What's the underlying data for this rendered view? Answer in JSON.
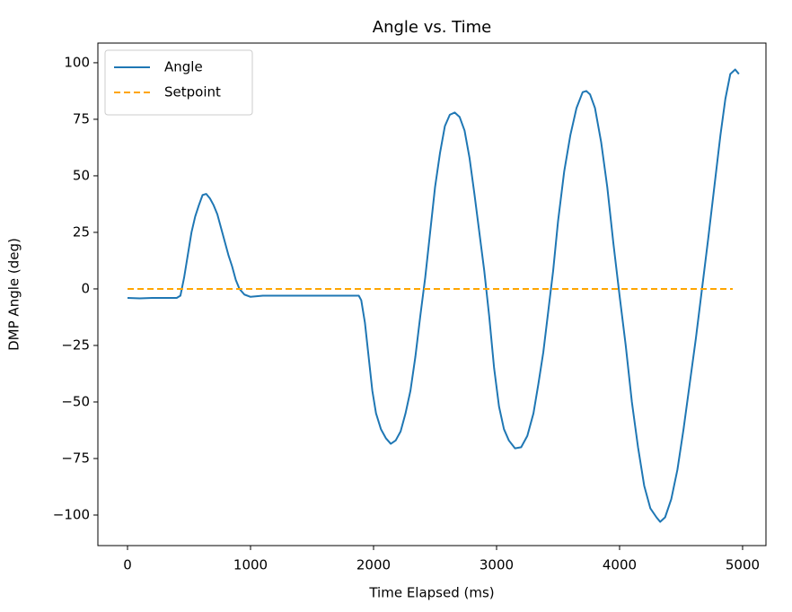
{
  "chart_data": {
    "type": "line",
    "title": "Angle vs. Time",
    "x_label": "Time Elapsed (ms)",
    "y_label": "DMP Angle (deg)",
    "xlim": [
      -241,
      5190
    ],
    "ylim": [
      -113.5,
      108.7
    ],
    "xticks": [
      0,
      1000,
      2000,
      3000,
      4000,
      5000
    ],
    "yticks": [
      {
        "value": -100,
        "label": "−100"
      },
      {
        "value": -75,
        "label": "−75"
      },
      {
        "value": -50,
        "label": "−50"
      },
      {
        "value": -25,
        "label": "−25"
      },
      0,
      25,
      50,
      75,
      100
    ],
    "legend": "upper left",
    "grid": false,
    "series": [
      {
        "name": "Angle",
        "color": "#1f77b4",
        "dashed": false,
        "x": [
          0,
          100,
          200,
          300,
          400,
          430,
          460,
          490,
          520,
          550,
          580,
          610,
          640,
          670,
          700,
          730,
          760,
          790,
          820,
          850,
          880,
          910,
          950,
          1000,
          1100,
          1300,
          1500,
          1700,
          1880,
          1900,
          1930,
          1960,
          1990,
          2020,
          2060,
          2100,
          2140,
          2180,
          2220,
          2260,
          2300,
          2340,
          2380,
          2420,
          2460,
          2500,
          2540,
          2580,
          2620,
          2660,
          2700,
          2740,
          2780,
          2820,
          2860,
          2900,
          2940,
          2980,
          3020,
          3060,
          3100,
          3150,
          3200,
          3250,
          3300,
          3340,
          3380,
          3420,
          3460,
          3500,
          3550,
          3600,
          3650,
          3700,
          3730,
          3760,
          3800,
          3850,
          3900,
          3950,
          4000,
          4050,
          4100,
          4150,
          4200,
          4250,
          4300,
          4330,
          4370,
          4420,
          4470,
          4520,
          4570,
          4620,
          4670,
          4720,
          4770,
          4820,
          4860,
          4900,
          4940,
          4970
        ],
        "values": [
          -4,
          -4.2,
          -4,
          -4,
          -4,
          -3,
          5,
          15,
          25,
          32,
          37,
          41.5,
          42,
          40,
          37,
          33,
          27,
          21,
          15,
          10,
          4,
          0,
          -2.5,
          -3.5,
          -3,
          -3,
          -3,
          -3,
          -3,
          -5,
          -15,
          -30,
          -45,
          -55,
          -62,
          -66,
          -68.5,
          -67,
          -63,
          -55,
          -45,
          -30,
          -12,
          5,
          25,
          45,
          60,
          72,
          77,
          78,
          76,
          70,
          58,
          42,
          25,
          8,
          -12,
          -35,
          -52,
          -62,
          -67,
          -70.5,
          -70,
          -65,
          -55,
          -42,
          -28,
          -10,
          8,
          30,
          52,
          68,
          80,
          87,
          87.5,
          86,
          80,
          65,
          45,
          20,
          -3,
          -25,
          -50,
          -70,
          -87,
          -97,
          -101,
          -103,
          -101,
          -93,
          -80,
          -62,
          -42,
          -22,
          0,
          22,
          45,
          68,
          84,
          95,
          97,
          95
        ]
      },
      {
        "name": "Setpoint",
        "color": "#ffa500",
        "dashed": true,
        "x": [
          0,
          4920
        ],
        "values": [
          0,
          0
        ]
      }
    ]
  }
}
